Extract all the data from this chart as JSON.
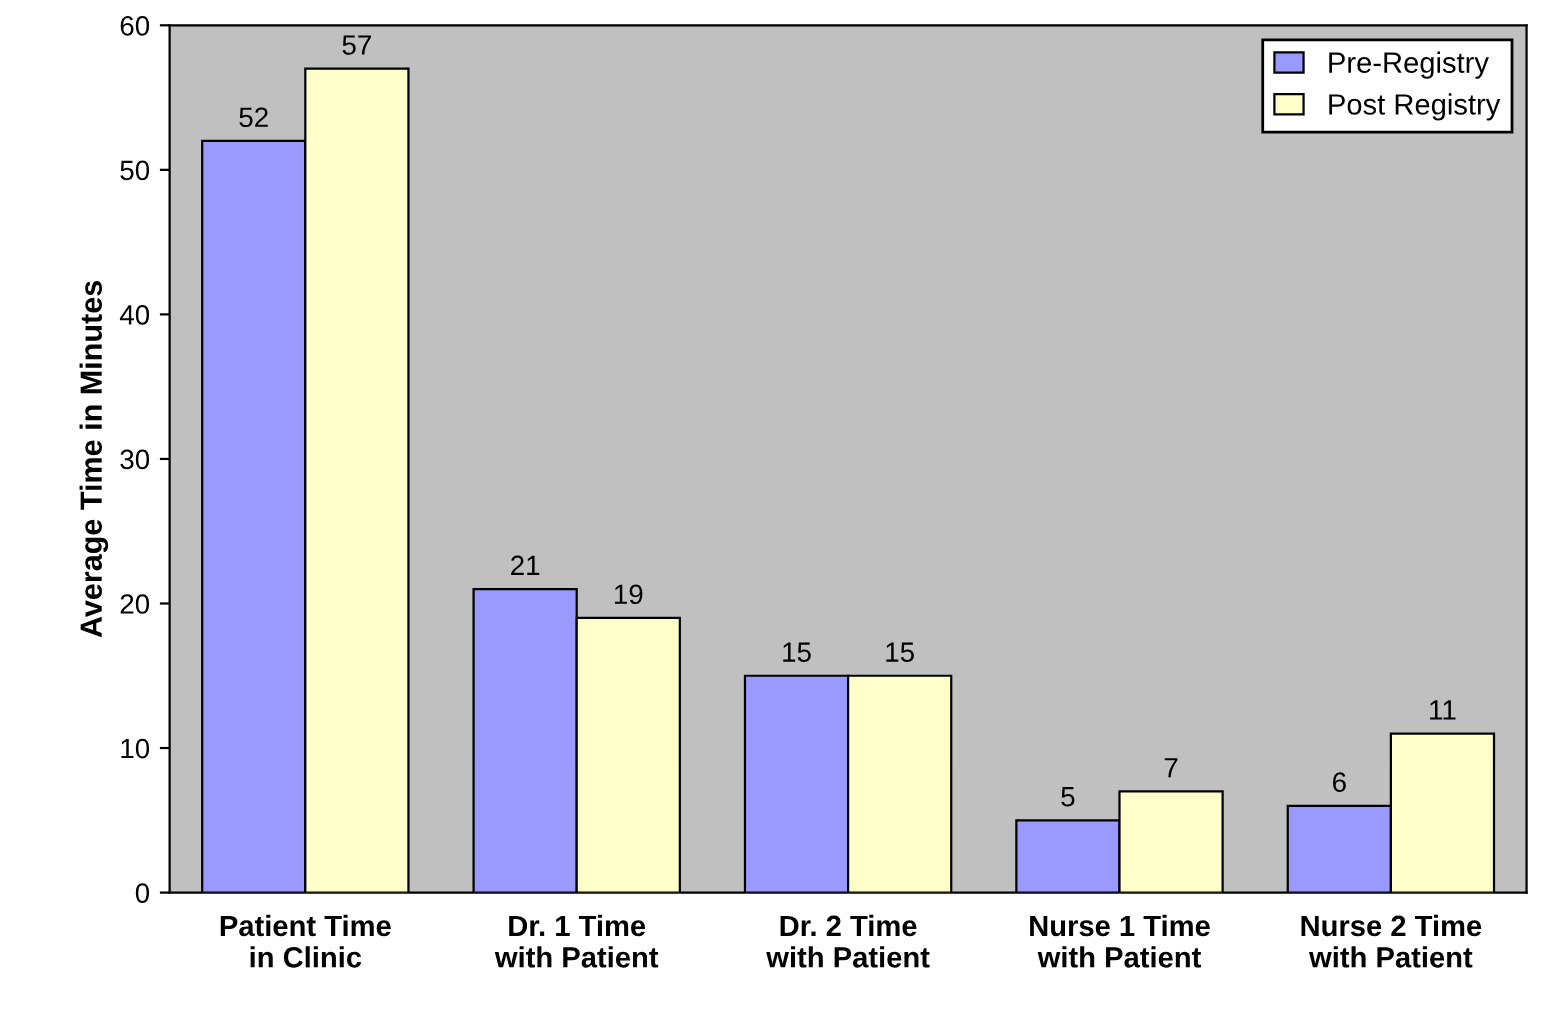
{
  "chart_data": {
    "type": "bar",
    "ylabel": "Average Time in Minutes",
    "categories": [
      "Patient Time\nin Clinic",
      "Dr. 1 Time\nwith Patient",
      "Dr. 2 Time\nwith Patient",
      "Nurse 1 Time\nwith Patient",
      "Nurse 2 Time\nwith Patient"
    ],
    "series": [
      {
        "name": "Pre-Registry",
        "color": "#9999ff",
        "values": [
          52,
          21,
          15,
          5,
          6
        ]
      },
      {
        "name": "Post Registry",
        "color": "#ffffcc",
        "values": [
          57,
          19,
          15,
          7,
          11
        ]
      }
    ],
    "ylim": [
      0,
      60
    ],
    "yticks": [
      0,
      10,
      20,
      30,
      40,
      50,
      60
    ],
    "grid": false,
    "legend": "top right",
    "data_labels": true
  }
}
